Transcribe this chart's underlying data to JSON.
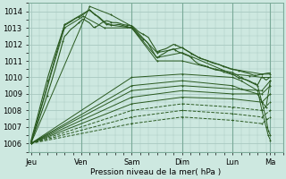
{
  "bg_color": "#cde8e0",
  "grid_color": "#a8c8c0",
  "line_color": "#2a5a20",
  "xlabel": "Pression niveau de la mer( hPa )",
  "ylim": [
    1005.5,
    1014.5
  ],
  "xlim": [
    -1,
    120
  ],
  "xtick_labels": [
    "Jeu",
    "Ven",
    "Sam",
    "Dim",
    "Lun",
    "Ma"
  ],
  "xtick_pos": [
    0,
    24,
    48,
    72,
    96,
    114
  ],
  "ytick_vals": [
    1006,
    1007,
    1008,
    1009,
    1010,
    1011,
    1012,
    1013,
    1014
  ],
  "ensemble_lines": [
    {
      "points": [
        [
          0,
          1006.0
        ],
        [
          16,
          1013.2
        ],
        [
          28,
          1014.1
        ],
        [
          36,
          1013.2
        ],
        [
          48,
          1013.0
        ],
        [
          60,
          1011.2
        ],
        [
          72,
          1011.5
        ],
        [
          96,
          1010.2
        ],
        [
          104,
          1010.1
        ],
        [
          110,
          1010.0
        ],
        [
          114,
          1010.0
        ]
      ],
      "dash": false
    },
    {
      "points": [
        [
          0,
          1006.0
        ],
        [
          28,
          1014.3
        ],
        [
          38,
          1013.8
        ],
        [
          48,
          1013.1
        ],
        [
          60,
          1011.5
        ],
        [
          72,
          1011.8
        ],
        [
          80,
          1011.2
        ],
        [
          96,
          1010.5
        ],
        [
          110,
          1010.2
        ],
        [
          114,
          1010.2
        ]
      ],
      "dash": false
    },
    {
      "points": [
        [
          0,
          1006.0
        ],
        [
          16,
          1013.0
        ],
        [
          25,
          1013.7
        ],
        [
          35,
          1013.0
        ],
        [
          48,
          1013.0
        ],
        [
          60,
          1011.0
        ],
        [
          72,
          1011.0
        ],
        [
          88,
          1010.5
        ],
        [
          96,
          1010.3
        ],
        [
          100,
          1010.0
        ],
        [
          108,
          1009.5
        ],
        [
          110,
          1008.5
        ],
        [
          112,
          1007.5
        ],
        [
          113,
          1006.8
        ],
        [
          114,
          1006.5
        ]
      ],
      "dash": false
    },
    {
      "points": [
        [
          0,
          1006.0
        ],
        [
          48,
          1010.0
        ],
        [
          72,
          1010.2
        ],
        [
          96,
          1010.0
        ],
        [
          100,
          1009.8
        ],
        [
          108,
          1009.2
        ],
        [
          110,
          1008.0
        ],
        [
          112,
          1007.0
        ],
        [
          113,
          1006.5
        ],
        [
          114,
          1006.2
        ]
      ],
      "dash": false
    },
    {
      "points": [
        [
          0,
          1006.0
        ],
        [
          48,
          1009.5
        ],
        [
          72,
          1009.8
        ],
        [
          96,
          1009.5
        ],
        [
          100,
          1009.3
        ],
        [
          108,
          1009.0
        ],
        [
          110,
          1008.5
        ],
        [
          112,
          1008.2
        ],
        [
          114,
          1009.8
        ]
      ],
      "dash": false
    },
    {
      "points": [
        [
          0,
          1006.0
        ],
        [
          48,
          1009.2
        ],
        [
          72,
          1009.5
        ],
        [
          96,
          1009.3
        ],
        [
          110,
          1009.2
        ],
        [
          114,
          1009.8
        ]
      ],
      "dash": false
    },
    {
      "points": [
        [
          0,
          1006.0
        ],
        [
          48,
          1008.8
        ],
        [
          72,
          1009.2
        ],
        [
          96,
          1009.0
        ],
        [
          110,
          1009.0
        ],
        [
          114,
          1009.5
        ]
      ],
      "dash": false
    },
    {
      "points": [
        [
          0,
          1006.0
        ],
        [
          48,
          1008.4
        ],
        [
          72,
          1008.8
        ],
        [
          96,
          1008.7
        ],
        [
          110,
          1008.5
        ],
        [
          114,
          1009.0
        ]
      ],
      "dash": false
    },
    {
      "points": [
        [
          0,
          1006.0
        ],
        [
          48,
          1008.0
        ],
        [
          72,
          1008.4
        ],
        [
          96,
          1008.2
        ],
        [
          110,
          1008.0
        ],
        [
          114,
          1008.5
        ]
      ],
      "dash": true
    },
    {
      "points": [
        [
          0,
          1006.0
        ],
        [
          48,
          1007.6
        ],
        [
          72,
          1008.0
        ],
        [
          96,
          1007.8
        ],
        [
          110,
          1007.6
        ],
        [
          114,
          1008.0
        ]
      ],
      "dash": true
    },
    {
      "points": [
        [
          0,
          1006.0
        ],
        [
          48,
          1007.2
        ],
        [
          72,
          1007.6
        ],
        [
          96,
          1007.4
        ],
        [
          110,
          1007.2
        ],
        [
          114,
          1007.6
        ]
      ],
      "dash": true
    }
  ],
  "noisy_lines": [
    {
      "base_points": [
        [
          0,
          1006.0
        ],
        [
          8,
          1010.0
        ],
        [
          16,
          1013.2
        ],
        [
          28,
          1014.1
        ],
        [
          36,
          1013.2
        ],
        [
          48,
          1013.0
        ],
        [
          56,
          1012.0
        ],
        [
          60,
          1011.2
        ],
        [
          68,
          1011.8
        ],
        [
          72,
          1011.5
        ],
        [
          80,
          1010.8
        ],
        [
          88,
          1010.5
        ],
        [
          96,
          1010.2
        ],
        [
          100,
          1010.0
        ],
        [
          104,
          1009.8
        ],
        [
          108,
          1009.5
        ],
        [
          110,
          1010.0
        ],
        [
          112,
          1009.8
        ],
        [
          114,
          1010.0
        ]
      ]
    },
    {
      "base_points": [
        [
          0,
          1006.0
        ],
        [
          8,
          1009.0
        ],
        [
          16,
          1012.5
        ],
        [
          25,
          1013.6
        ],
        [
          30,
          1013.0
        ],
        [
          36,
          1013.4
        ],
        [
          48,
          1013.1
        ],
        [
          56,
          1012.5
        ],
        [
          60,
          1011.5
        ],
        [
          68,
          1012.0
        ],
        [
          72,
          1011.8
        ],
        [
          80,
          1011.2
        ],
        [
          88,
          1010.8
        ],
        [
          96,
          1010.5
        ],
        [
          104,
          1010.2
        ],
        [
          110,
          1010.2
        ],
        [
          114,
          1010.2
        ]
      ]
    }
  ]
}
